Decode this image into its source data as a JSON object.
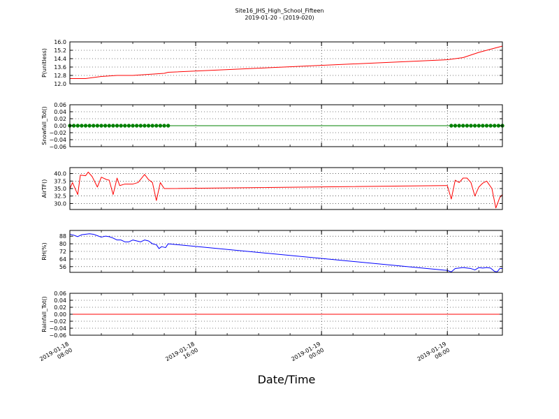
{
  "figure": {
    "title": "Site16_JHS_High_School_Fifteen",
    "subtitle": "2019-01-20 - (2019-020)",
    "xlabel": "Date/Time"
  },
  "chart_data": {
    "type": "line",
    "x_axis": {
      "range": [
        "2019-01-18 08:00",
        "2019-01-19 11:30"
      ],
      "ticks": [
        {
          "x": "2019-01-18 08:00",
          "label": [
            "2019-01-18",
            "08:00"
          ]
        },
        {
          "x": "2019-01-18 16:00",
          "label": [
            "2019-01-18",
            "16:00"
          ]
        },
        {
          "x": "2019-01-19 00:00",
          "label": [
            "2019-01-19",
            "00:00"
          ]
        },
        {
          "x": "2019-01-19 08:00",
          "label": [
            "2019-01-19",
            "08:00"
          ]
        }
      ]
    },
    "grid": true,
    "panels": [
      {
        "ylabel": "P(unitless)",
        "ylim": [
          12.0,
          16.0
        ],
        "yticks": [
          12.0,
          12.8,
          13.6,
          14.4,
          15.2,
          16.0
        ],
        "ytick_labels": [
          "12.0",
          "12.8",
          "13.6",
          "14.4",
          "15.2",
          "16.0"
        ],
        "color": "#ff0000",
        "style": "line",
        "points": [
          [
            "2019-01-18 08:00",
            12.5
          ],
          [
            "2019-01-18 09:00",
            12.5
          ],
          [
            "2019-01-18 10:00",
            12.7
          ],
          [
            "2019-01-18 11:00",
            12.8
          ],
          [
            "2019-01-18 12:00",
            12.8
          ],
          [
            "2019-01-18 13:00",
            12.9
          ],
          [
            "2019-01-18 14:00",
            13.0
          ],
          [
            "2019-01-18 14:15",
            13.1
          ],
          [
            "2019-01-19 08:00",
            14.3
          ],
          [
            "2019-01-19 09:00",
            14.5
          ],
          [
            "2019-01-19 10:00",
            15.0
          ],
          [
            "2019-01-19 11:00",
            15.4
          ],
          [
            "2019-01-19 11:30",
            15.6
          ]
        ]
      },
      {
        "ylabel": "Snowfall_Tot()",
        "ylim": [
          -0.06,
          0.06
        ],
        "yticks": [
          -0.06,
          -0.04,
          -0.02,
          0.0,
          0.02,
          0.04,
          0.06
        ],
        "ytick_labels": [
          "−0.06",
          "−0.04",
          "−0.02",
          "0.00",
          "0.02",
          "0.04",
          "0.06"
        ],
        "color": "#008000",
        "style": "line+markers",
        "points": [
          [
            "2019-01-18 08:00",
            0.0
          ],
          [
            "2019-01-19 11:30",
            0.0
          ]
        ],
        "marker_ranges": [
          {
            "start": "2019-01-18 08:00",
            "end": "2019-01-18 14:15",
            "step_minutes": 15
          },
          {
            "start": "2019-01-19 08:15",
            "end": "2019-01-19 11:30",
            "step_minutes": 15
          }
        ]
      },
      {
        "ylabel": "AirTF()",
        "ylim": [
          28.0,
          42.0
        ],
        "yticks": [
          30.0,
          32.5,
          35.0,
          37.5,
          40.0
        ],
        "ytick_labels": [
          "30.0",
          "32.5",
          "35.0",
          "37.5",
          "40.0"
        ],
        "color": "#ff0000",
        "style": "line",
        "points": [
          [
            "2019-01-18 08:00",
            35.0
          ],
          [
            "2019-01-18 08:10",
            37.0
          ],
          [
            "2019-01-18 08:30",
            33.0
          ],
          [
            "2019-01-18 08:40",
            39.5
          ],
          [
            "2019-01-18 09:00",
            39.3
          ],
          [
            "2019-01-18 09:10",
            40.5
          ],
          [
            "2019-01-18 09:25",
            39.0
          ],
          [
            "2019-01-18 09:45",
            35.5
          ],
          [
            "2019-01-18 10:00",
            38.8
          ],
          [
            "2019-01-18 10:20",
            38.0
          ],
          [
            "2019-01-18 10:30",
            37.8
          ],
          [
            "2019-01-18 10:45",
            33.0
          ],
          [
            "2019-01-18 11:00",
            38.5
          ],
          [
            "2019-01-18 11:10",
            36.0
          ],
          [
            "2019-01-18 11:30",
            36.5
          ],
          [
            "2019-01-18 12:00",
            36.5
          ],
          [
            "2019-01-18 12:20",
            37.0
          ],
          [
            "2019-01-18 12:45",
            39.7
          ],
          [
            "2019-01-18 13:00",
            38.0
          ],
          [
            "2019-01-18 13:15",
            37.0
          ],
          [
            "2019-01-18 13:30",
            31.0
          ],
          [
            "2019-01-18 13:45",
            37.0
          ],
          [
            "2019-01-18 14:00",
            35.0
          ],
          [
            "2019-01-18 14:15",
            35.0
          ],
          [
            "2019-01-19 08:00",
            36.0
          ],
          [
            "2019-01-19 08:15",
            31.5
          ],
          [
            "2019-01-19 08:30",
            37.8
          ],
          [
            "2019-01-19 08:45",
            37.0
          ],
          [
            "2019-01-19 09:00",
            38.5
          ],
          [
            "2019-01-19 09:15",
            38.5
          ],
          [
            "2019-01-19 09:30",
            37.0
          ],
          [
            "2019-01-19 09:45",
            32.5
          ],
          [
            "2019-01-19 10:00",
            35.5
          ],
          [
            "2019-01-19 10:15",
            36.8
          ],
          [
            "2019-01-19 10:30",
            37.5
          ],
          [
            "2019-01-19 10:50",
            35.0
          ],
          [
            "2019-01-19 11:05",
            28.5
          ],
          [
            "2019-01-19 11:20",
            32.0
          ],
          [
            "2019-01-19 11:30",
            33.0
          ]
        ]
      },
      {
        "ylabel": "RH(%)",
        "ylim": [
          50,
          94
        ],
        "yticks": [
          56,
          64,
          72,
          80,
          88
        ],
        "ytick_labels": [
          "56",
          "64",
          "72",
          "80",
          "88"
        ],
        "color": "#0000ff",
        "style": "line",
        "points": [
          [
            "2019-01-18 08:00",
            90
          ],
          [
            "2019-01-18 08:15",
            89
          ],
          [
            "2019-01-18 08:30",
            87.5
          ],
          [
            "2019-01-18 08:45",
            89.5
          ],
          [
            "2019-01-18 09:15",
            90.5
          ],
          [
            "2019-01-18 09:30",
            90
          ],
          [
            "2019-01-18 09:45",
            88.5
          ],
          [
            "2019-01-18 10:00",
            87
          ],
          [
            "2019-01-18 10:15",
            88
          ],
          [
            "2019-01-18 10:30",
            87.5
          ],
          [
            "2019-01-18 10:45",
            86
          ],
          [
            "2019-01-18 11:00",
            84
          ],
          [
            "2019-01-18 11:15",
            84
          ],
          [
            "2019-01-18 11:30",
            82
          ],
          [
            "2019-01-18 11:45",
            82
          ],
          [
            "2019-01-18 12:00",
            84
          ],
          [
            "2019-01-18 12:15",
            83
          ],
          [
            "2019-01-18 12:30",
            82
          ],
          [
            "2019-01-18 12:45",
            84
          ],
          [
            "2019-01-18 13:00",
            83
          ],
          [
            "2019-01-18 13:15",
            80
          ],
          [
            "2019-01-18 13:30",
            79
          ],
          [
            "2019-01-18 13:40",
            75
          ],
          [
            "2019-01-18 13:50",
            77
          ],
          [
            "2019-01-18 14:05",
            76
          ],
          [
            "2019-01-18 14:15",
            80
          ],
          [
            "2019-01-19 08:00",
            52
          ],
          [
            "2019-01-19 08:15",
            50.5
          ],
          [
            "2019-01-19 08:30",
            54
          ],
          [
            "2019-01-19 09:00",
            55
          ],
          [
            "2019-01-19 09:30",
            54
          ],
          [
            "2019-01-19 09:45",
            52.5
          ],
          [
            "2019-01-19 10:00",
            55
          ],
          [
            "2019-01-19 10:15",
            54.5
          ],
          [
            "2019-01-19 10:30",
            55
          ],
          [
            "2019-01-19 10:45",
            54.5
          ],
          [
            "2019-01-19 11:00",
            51
          ],
          [
            "2019-01-19 11:10",
            50.5
          ],
          [
            "2019-01-19 11:20",
            54
          ],
          [
            "2019-01-19 11:30",
            54
          ]
        ]
      },
      {
        "ylabel": "Rainfall_Tot()",
        "ylim": [
          -0.06,
          0.06
        ],
        "yticks": [
          -0.06,
          -0.04,
          -0.02,
          0.0,
          0.02,
          0.04,
          0.06
        ],
        "ytick_labels": [
          "−0.06",
          "−0.04",
          "−0.02",
          "0.00",
          "0.02",
          "0.04",
          "0.06"
        ],
        "color": "#ff0000",
        "style": "line",
        "points": [
          [
            "2019-01-18 08:00",
            0.0
          ],
          [
            "2019-01-19 11:30",
            0.0
          ]
        ]
      }
    ]
  }
}
